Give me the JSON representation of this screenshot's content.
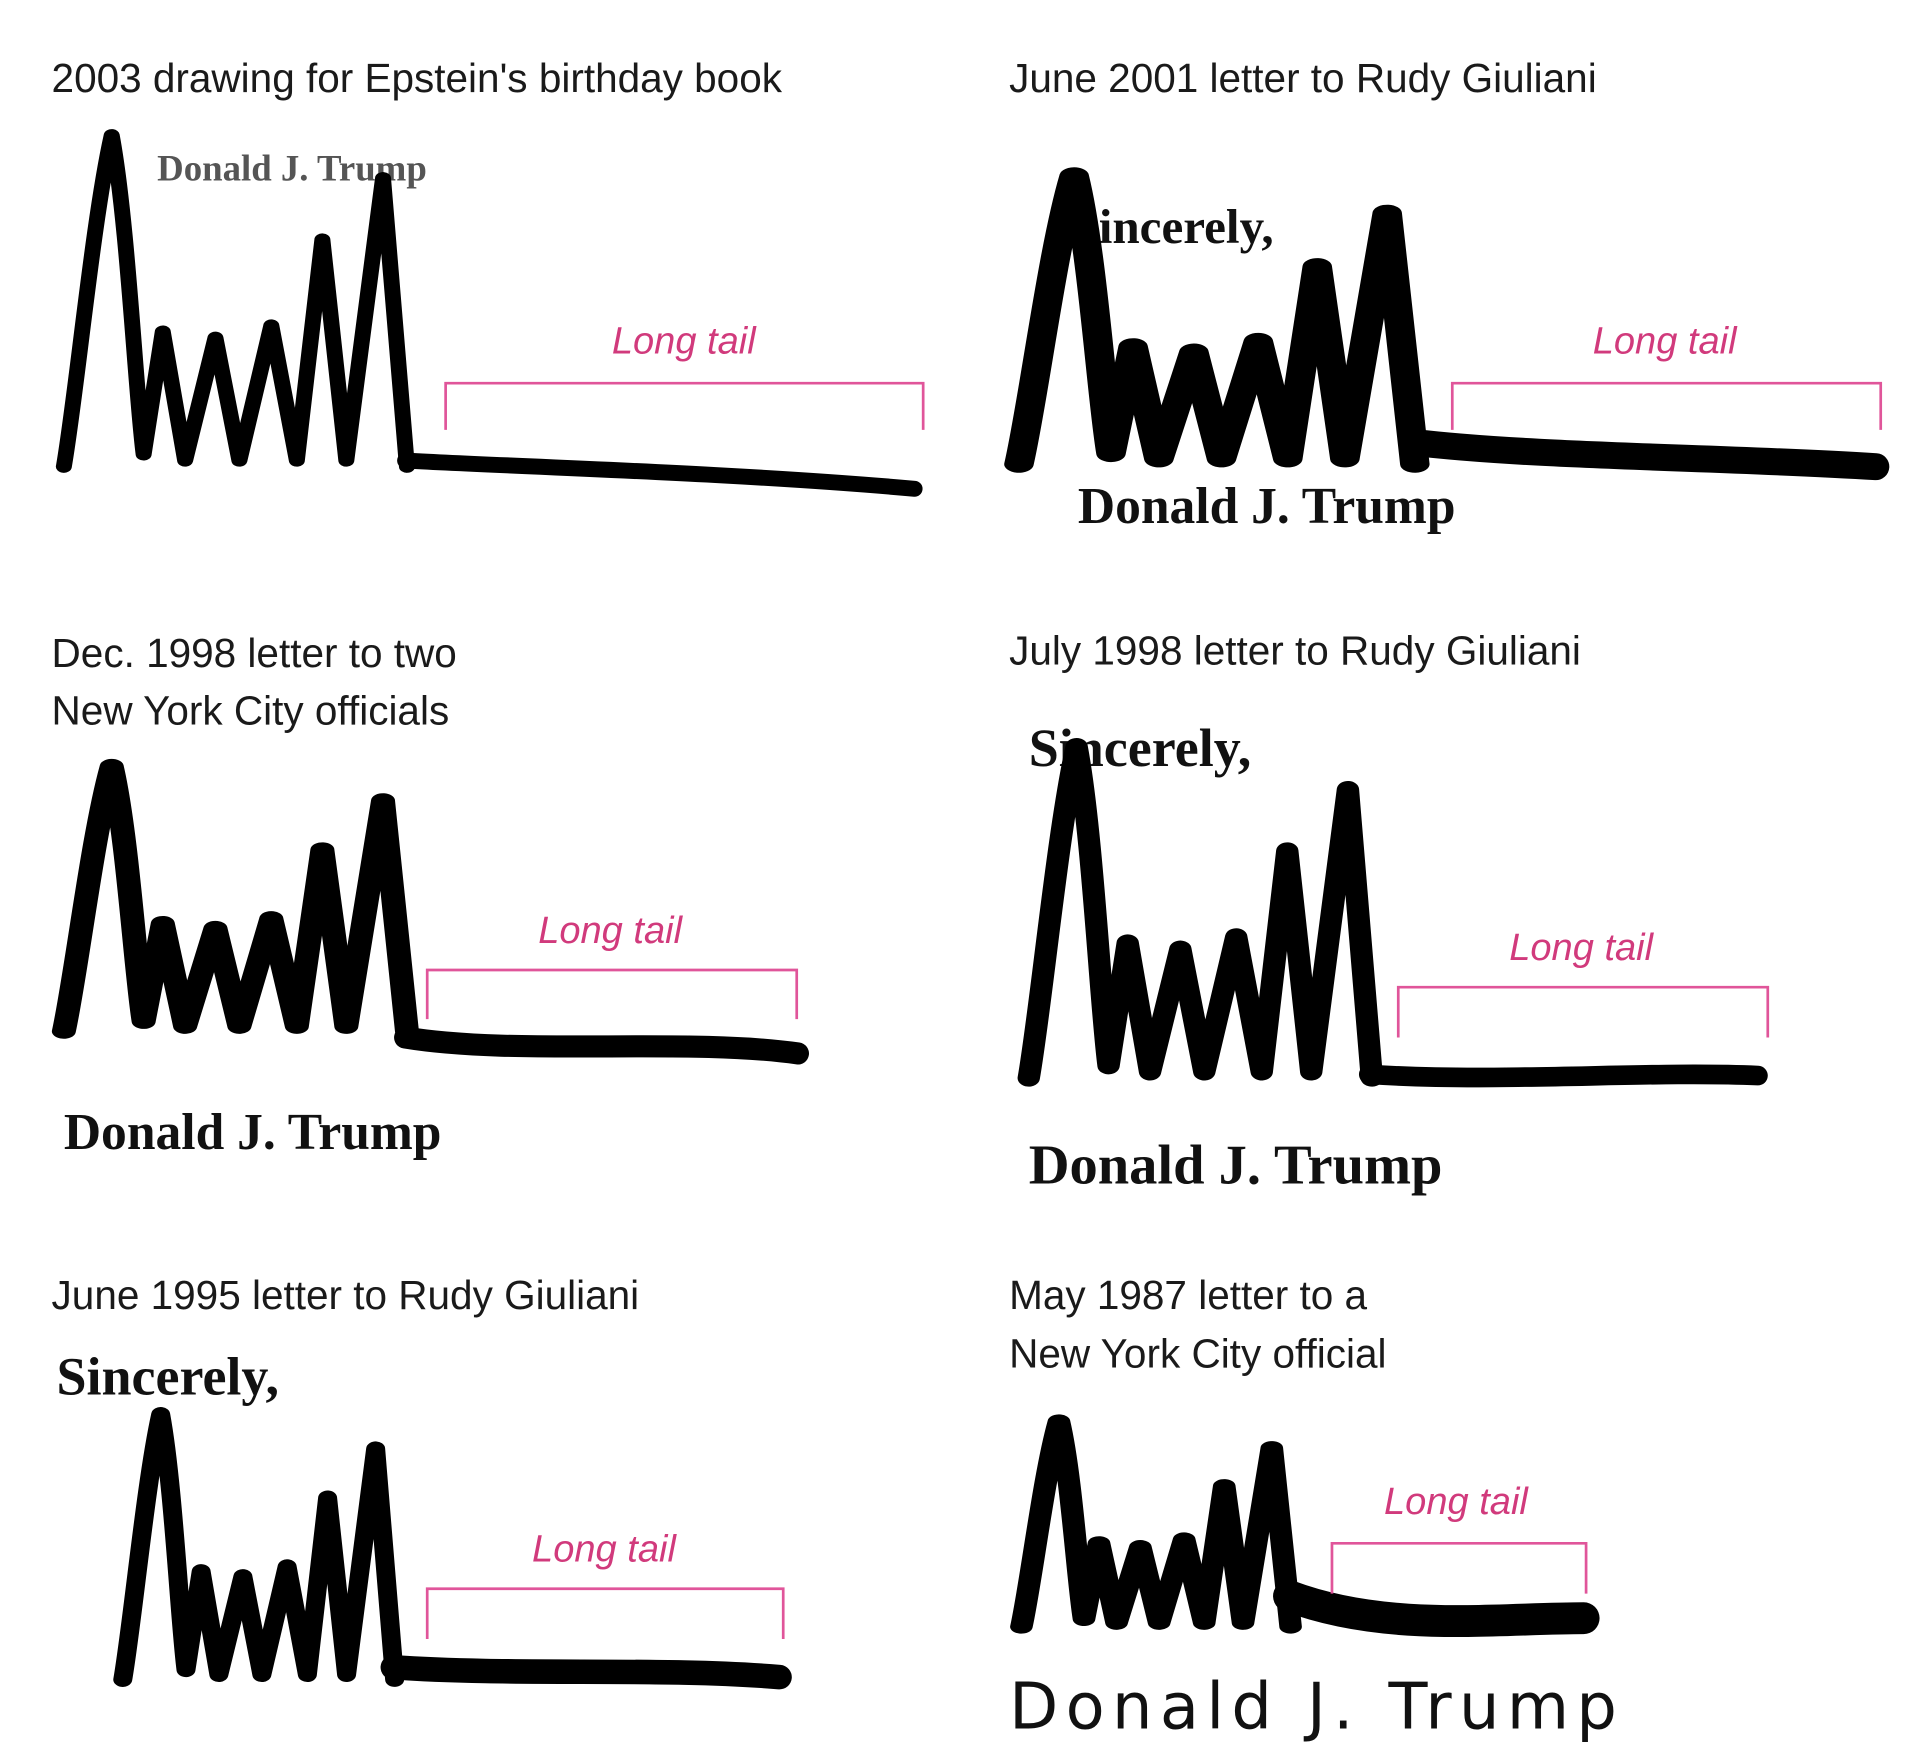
{
  "accent_color": "#d13a7c",
  "panels": [
    {
      "caption": [
        "2003 drawing for Epstein's birthday book"
      ],
      "annotation": "Long tail",
      "printed_name": "Donald J. Trump"
    },
    {
      "caption": [
        "June 2001 letter to Rudy Giuliani"
      ],
      "annotation": "Long tail",
      "closing": "incerely,",
      "printed_name": "Donald J. Trump"
    },
    {
      "caption": [
        "Dec. 1998 letter to two",
        "New York City officials"
      ],
      "annotation": "Long tail",
      "printed_name": "Donald J. Trump"
    },
    {
      "caption": [
        "July 1998 letter to Rudy Giuliani"
      ],
      "annotation": "Long tail",
      "closing": "Sincerely,",
      "printed_name": "Donald J. Trump"
    },
    {
      "caption": [
        "June 1995 letter to Rudy Giuliani"
      ],
      "annotation": "Long tail",
      "closing": "Sincerely,"
    },
    {
      "caption": [
        "May 1987 letter to a",
        "New York City official"
      ],
      "annotation": "Long tail",
      "printed_name": "Donald J. Trump"
    }
  ]
}
